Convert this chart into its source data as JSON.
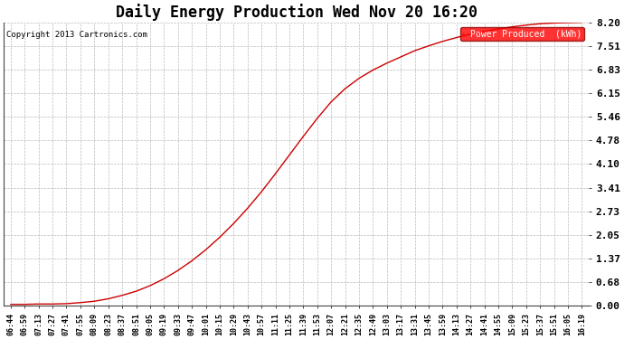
{
  "title": "Daily Energy Production Wed Nov 20 16:20",
  "copyright_text": "Copyright 2013 Cartronics.com",
  "legend_label": "Power Produced  (kWh)",
  "legend_bg": "#ff0000",
  "legend_fg": "#ffffff",
  "line_color": "#cc0000",
  "bg_color": "#ffffff",
  "grid_color": "#bbbbbb",
  "yticks": [
    0.0,
    0.68,
    1.37,
    2.05,
    2.73,
    3.41,
    4.1,
    4.78,
    5.46,
    6.15,
    6.83,
    7.51,
    8.2
  ],
  "ylim": [
    0.0,
    8.2
  ],
  "x_labels": [
    "06:44",
    "06:59",
    "07:13",
    "07:27",
    "07:41",
    "07:55",
    "08:09",
    "08:23",
    "08:37",
    "08:51",
    "09:05",
    "09:19",
    "09:33",
    "09:47",
    "10:01",
    "10:15",
    "10:29",
    "10:43",
    "10:57",
    "11:11",
    "11:25",
    "11:39",
    "11:53",
    "12:07",
    "12:21",
    "12:35",
    "12:49",
    "13:03",
    "13:17",
    "13:31",
    "13:45",
    "13:59",
    "14:13",
    "14:27",
    "14:41",
    "14:55",
    "15:09",
    "15:23",
    "15:37",
    "15:51",
    "16:05",
    "16:19"
  ],
  "y_values": [
    0.04,
    0.04,
    0.05,
    0.05,
    0.06,
    0.09,
    0.13,
    0.2,
    0.3,
    0.42,
    0.58,
    0.78,
    1.02,
    1.3,
    1.62,
    1.98,
    2.38,
    2.82,
    3.3,
    3.82,
    4.36,
    4.9,
    5.42,
    5.9,
    6.28,
    6.58,
    6.82,
    7.02,
    7.2,
    7.38,
    7.52,
    7.65,
    7.76,
    7.86,
    7.94,
    8.01,
    8.07,
    8.12,
    8.16,
    8.18,
    8.19,
    8.2
  ],
  "figsize": [
    6.9,
    3.75
  ],
  "dpi": 100
}
